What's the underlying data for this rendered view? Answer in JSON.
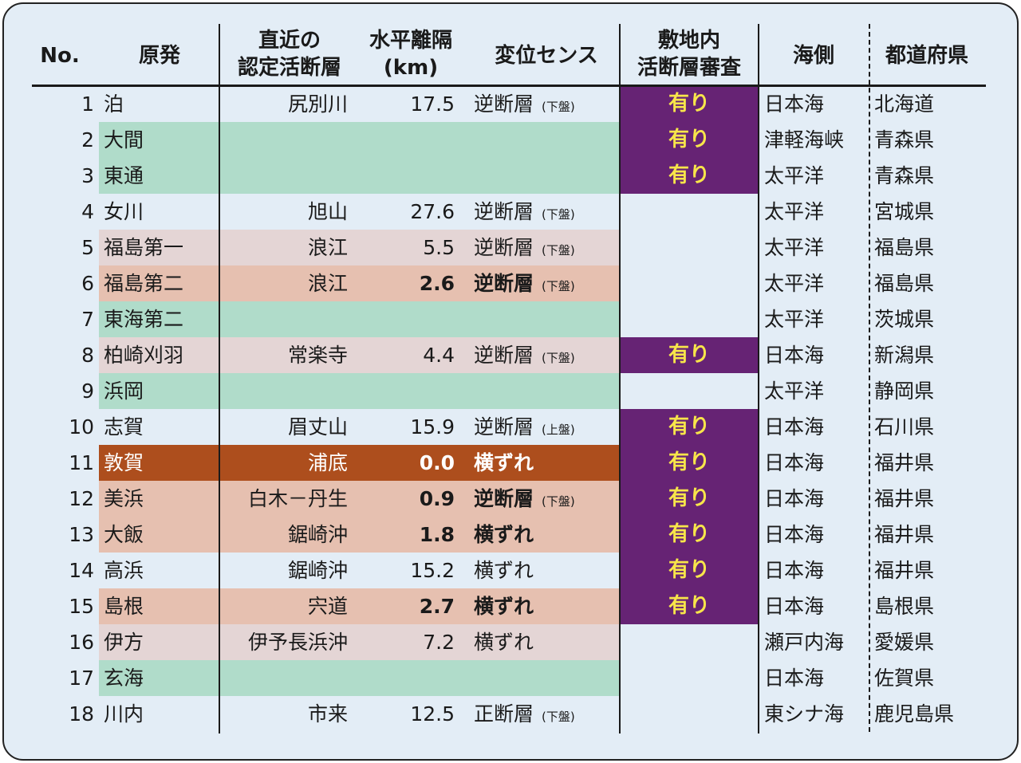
{
  "headers": {
    "no": "No.",
    "plant": "原発",
    "fault": [
      "直近の",
      "認定活断層"
    ],
    "distance": [
      "水平離隔",
      "(km)"
    ],
    "sense": "変位センス",
    "review": [
      "敷地内",
      "活断層審査"
    ],
    "sea": "海側",
    "pref": "都道府県"
  },
  "colors": {
    "panel": "#e3edf6",
    "green": "#b0dcca",
    "light_pink": "#e4d5d5",
    "salmon": "#e6c0b0",
    "brown": "#ad4e1d",
    "purple": "#662374",
    "review_text": "#f7e54a"
  },
  "rows": [
    {
      "no": "1",
      "plant": "泊",
      "fault": "尻別川",
      "distance": "17.5",
      "sense": "逆断層",
      "block": "(下盤)",
      "review": "有り",
      "sea": "日本海",
      "pref": "北海道",
      "row_color": "none",
      "emphasis": false
    },
    {
      "no": "2",
      "plant": "大間",
      "fault": "",
      "distance": "",
      "sense": "",
      "block": "",
      "review": "有り",
      "sea": "津軽海峡",
      "pref": "青森県",
      "row_color": "green",
      "emphasis": false
    },
    {
      "no": "3",
      "plant": "東通",
      "fault": "",
      "distance": "",
      "sense": "",
      "block": "",
      "review": "有り",
      "sea": "太平洋",
      "pref": "青森県",
      "row_color": "green",
      "emphasis": false
    },
    {
      "no": "4",
      "plant": "女川",
      "fault": "旭山",
      "distance": "27.6",
      "sense": "逆断層",
      "block": "(下盤)",
      "review": "",
      "sea": "太平洋",
      "pref": "宮城県",
      "row_color": "none",
      "emphasis": false
    },
    {
      "no": "5",
      "plant": "福島第一",
      "fault": "浪江",
      "distance": "5.5",
      "sense": "逆断層",
      "block": "(下盤)",
      "review": "",
      "sea": "太平洋",
      "pref": "福島県",
      "row_color": "light_pink",
      "emphasis": false
    },
    {
      "no": "6",
      "plant": "福島第二",
      "fault": "浪江",
      "distance": "2.6",
      "sense": "逆断層",
      "block": "(下盤)",
      "review": "",
      "sea": "太平洋",
      "pref": "福島県",
      "row_color": "salmon",
      "emphasis": true
    },
    {
      "no": "7",
      "plant": "東海第二",
      "fault": "",
      "distance": "",
      "sense": "",
      "block": "",
      "review": "",
      "sea": "太平洋",
      "pref": "茨城県",
      "row_color": "green",
      "emphasis": false
    },
    {
      "no": "8",
      "plant": "柏崎刈羽",
      "fault": "常楽寺",
      "distance": "4.4",
      "sense": "逆断層",
      "block": "(下盤)",
      "review": "有り",
      "sea": "日本海",
      "pref": "新潟県",
      "row_color": "light_pink",
      "emphasis": false
    },
    {
      "no": "9",
      "plant": "浜岡",
      "fault": "",
      "distance": "",
      "sense": "",
      "block": "",
      "review": "",
      "sea": "太平洋",
      "pref": "静岡県",
      "row_color": "green",
      "emphasis": false
    },
    {
      "no": "10",
      "plant": "志賀",
      "fault": "眉丈山",
      "distance": "15.9",
      "sense": "逆断層",
      "block": "(上盤)",
      "review": "有り",
      "sea": "日本海",
      "pref": "石川県",
      "row_color": "none",
      "emphasis": false
    },
    {
      "no": "11",
      "plant": "敦賀",
      "fault": "浦底",
      "distance": "0.0",
      "sense": "横ずれ",
      "block": "",
      "review": "有り",
      "sea": "日本海",
      "pref": "福井県",
      "row_color": "brown",
      "emphasis": true
    },
    {
      "no": "12",
      "plant": "美浜",
      "fault": "白木－丹生",
      "distance": "0.9",
      "sense": "逆断層",
      "block": "(下盤)",
      "review": "有り",
      "sea": "日本海",
      "pref": "福井県",
      "row_color": "salmon",
      "emphasis": true
    },
    {
      "no": "13",
      "plant": "大飯",
      "fault": "鋸崎沖",
      "distance": "1.8",
      "sense": "横ずれ",
      "block": "",
      "review": "有り",
      "sea": "日本海",
      "pref": "福井県",
      "row_color": "salmon",
      "emphasis": true
    },
    {
      "no": "14",
      "plant": "高浜",
      "fault": "鋸崎沖",
      "distance": "15.2",
      "sense": "横ずれ",
      "block": "",
      "review": "有り",
      "sea": "日本海",
      "pref": "福井県",
      "row_color": "none",
      "emphasis": false
    },
    {
      "no": "15",
      "plant": "島根",
      "fault": "宍道",
      "distance": "2.7",
      "sense": "横ずれ",
      "block": "",
      "review": "有り",
      "sea": "日本海",
      "pref": "島根県",
      "row_color": "salmon",
      "emphasis": true
    },
    {
      "no": "16",
      "plant": "伊方",
      "fault": "伊予長浜沖",
      "distance": "7.2",
      "sense": "横ずれ",
      "block": "",
      "review": "",
      "sea": "瀬戸内海",
      "pref": "愛媛県",
      "row_color": "light_pink",
      "emphasis": false
    },
    {
      "no": "17",
      "plant": "玄海",
      "fault": "",
      "distance": "",
      "sense": "",
      "block": "",
      "review": "",
      "sea": "日本海",
      "pref": "佐賀県",
      "row_color": "green",
      "emphasis": false
    },
    {
      "no": "18",
      "plant": "川内",
      "fault": "市来",
      "distance": "12.5",
      "sense": "正断層",
      "block": "(下盤)",
      "review": "",
      "sea": "東シナ海",
      "pref": "鹿児島県",
      "row_color": "none",
      "emphasis": false
    }
  ]
}
